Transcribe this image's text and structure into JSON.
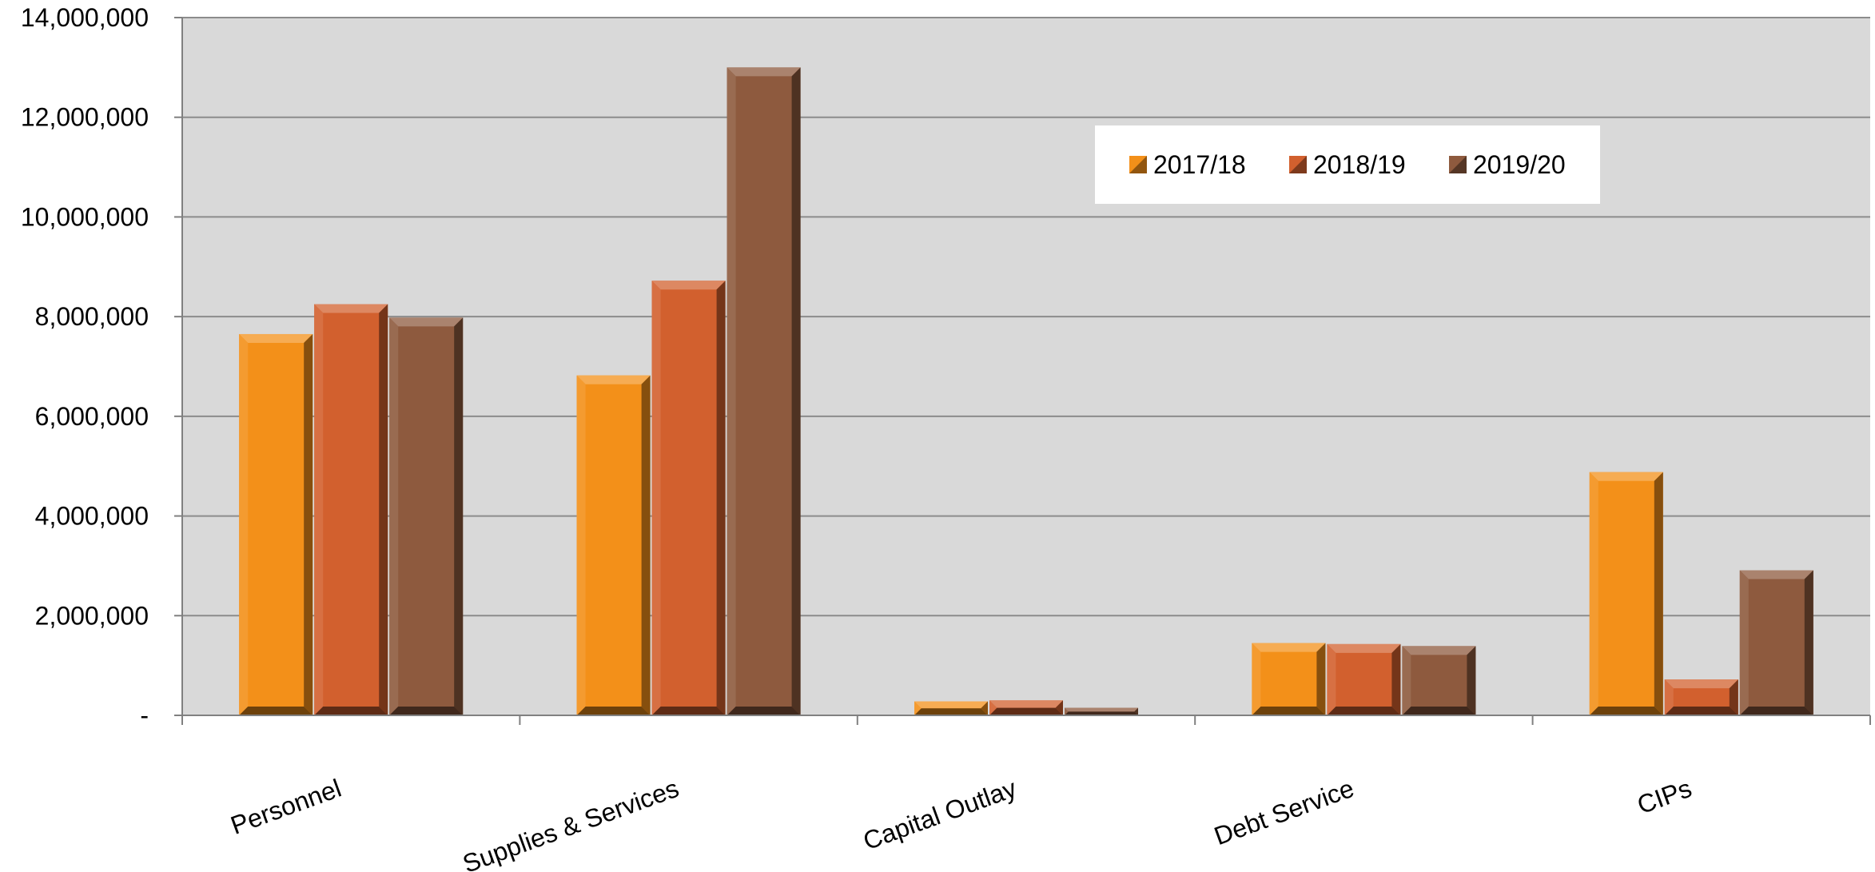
{
  "chart_data": {
    "type": "bar",
    "categories": [
      "Personnel",
      "Supplies & Services",
      "Capital Outlay",
      "Debt Service",
      "CIPs"
    ],
    "series": [
      {
        "name": "2017/18",
        "values": [
          7650000,
          6820000,
          280000,
          1450000,
          4880000
        ],
        "color": "#F39019"
      },
      {
        "name": "2018/19",
        "values": [
          8250000,
          8720000,
          300000,
          1430000,
          720000
        ],
        "color": "#D2602E"
      },
      {
        "name": "2019/20",
        "values": [
          7980000,
          13000000,
          150000,
          1390000,
          2910000
        ],
        "color": "#8E5A3E"
      }
    ],
    "y_ticks": [
      "-",
      "2,000,000",
      "4,000,000",
      "6,000,000",
      "8,000,000",
      "10,000,000",
      "12,000,000",
      "14,000,000"
    ],
    "ylim": [
      0,
      14000000
    ],
    "grid": true,
    "legend_placement": "top-right inside plot",
    "plot_background": "#D9D9D9",
    "title": "",
    "xlabel": "",
    "ylabel": ""
  }
}
